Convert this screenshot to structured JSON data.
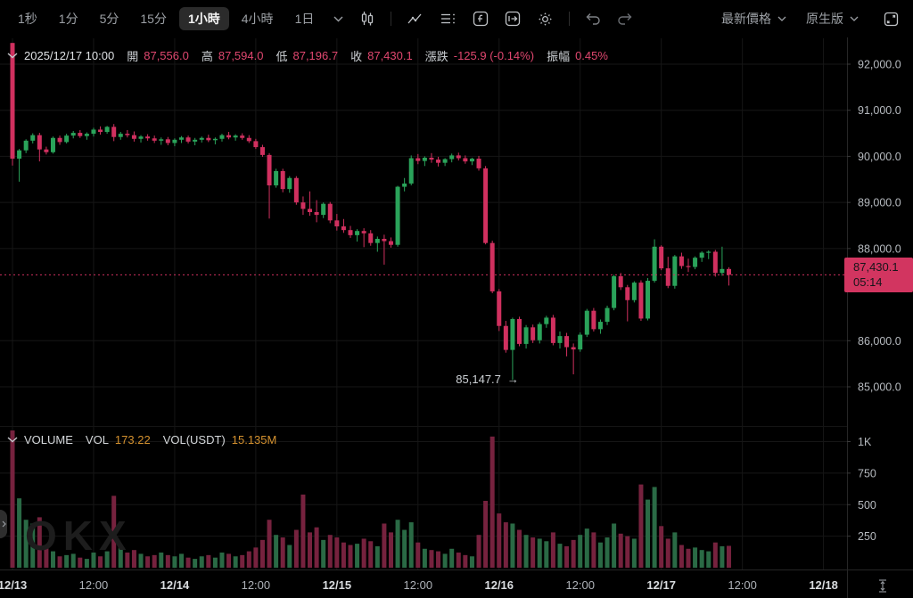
{
  "toolbar": {
    "timeframes": [
      {
        "label": "1秒",
        "active": false
      },
      {
        "label": "1分",
        "active": false
      },
      {
        "label": "5分",
        "active": false
      },
      {
        "label": "15分",
        "active": false
      },
      {
        "label": "1小時",
        "active": true
      },
      {
        "label": "4小時",
        "active": false
      },
      {
        "label": "1日",
        "active": false
      }
    ],
    "price_mode": "最新價格",
    "version": "原生版"
  },
  "ohlc": {
    "date": "2025/12/17 10:00",
    "fields": [
      {
        "label": "開",
        "value": "87,556.0"
      },
      {
        "label": "高",
        "value": "87,594.0"
      },
      {
        "label": "低",
        "value": "87,196.7"
      },
      {
        "label": "收",
        "value": "87,430.1"
      },
      {
        "label": "漲跌",
        "value": "-125.9 (-0.14%)"
      },
      {
        "label": "振幅",
        "value": "0.45%"
      }
    ]
  },
  "volume_header": {
    "title": "VOLUME",
    "vol_label": "VOL",
    "vol_value": "173.22",
    "vol_usdt_label": "VOL(USDT)",
    "vol_usdt_value": "15.135M"
  },
  "annotation": {
    "text": "85,147.7",
    "arrow": "→"
  },
  "price_tag": {
    "price": "87,430.1",
    "countdown": "05:14"
  },
  "watermark_text": "OKX",
  "chart_data": {
    "type": "candlestick",
    "interval": "1小時",
    "start_time": "2025/12/13 00:00",
    "colors": {
      "up": "#2aa35a",
      "down": "#d0305f",
      "vol_up": "#2a6a45",
      "vol_down": "#76223e",
      "grid": "#161616",
      "axis_text": "#b6babf",
      "tag_bg": "#d23560"
    },
    "last_price": 87430.1,
    "low_annotation": {
      "value": 85147.7,
      "hour": 74
    },
    "y_ticks": [
      {
        "label": "92,000.0",
        "value": 92000
      },
      {
        "label": "91,000.0",
        "value": 91000
      },
      {
        "label": "90,000.0",
        "value": 90000
      },
      {
        "label": "89,000.0",
        "value": 89000
      },
      {
        "label": "88,000.0",
        "value": 88000
      },
      {
        "label": "86,000.0",
        "value": 86000
      },
      {
        "label": "85,000.0",
        "value": 85000
      }
    ],
    "volume_ticks": [
      {
        "label": "1K",
        "value": 1000
      },
      {
        "label": "750",
        "value": 750
      },
      {
        "label": "500",
        "value": 500
      },
      {
        "label": "250",
        "value": 250
      }
    ],
    "x_ticks": [
      {
        "label": "12/13",
        "hour": 0,
        "bold": true
      },
      {
        "label": "12:00",
        "hour": 12,
        "bold": false
      },
      {
        "label": "12/14",
        "hour": 24,
        "bold": true
      },
      {
        "label": "12:00",
        "hour": 36,
        "bold": false
      },
      {
        "label": "12/15",
        "hour": 48,
        "bold": true
      },
      {
        "label": "12:00",
        "hour": 60,
        "bold": false
      },
      {
        "label": "12/16",
        "hour": 72,
        "bold": true
      },
      {
        "label": "12:00",
        "hour": 84,
        "bold": false
      },
      {
        "label": "12/17",
        "hour": 96,
        "bold": true
      },
      {
        "label": "12:00",
        "hour": 108,
        "bold": false
      },
      {
        "label": "12/18",
        "hour": 120,
        "bold": true
      }
    ],
    "candles": [
      [
        92460,
        92460,
        89800,
        89950,
        1150
      ],
      [
        89950,
        90160,
        89450,
        90130,
        550
      ],
      [
        90130,
        90370,
        90070,
        90340,
        380
      ],
      [
        90340,
        90500,
        90280,
        90460,
        350
      ],
      [
        90460,
        90510,
        89890,
        90150,
        400
      ],
      [
        90150,
        90210,
        90040,
        90090,
        160
      ],
      [
        90090,
        90430,
        90060,
        90400,
        130
      ],
      [
        90400,
        90450,
        90250,
        90310,
        90
      ],
      [
        90310,
        90490,
        90280,
        90450,
        100
      ],
      [
        90450,
        90550,
        90390,
        90510,
        110
      ],
      [
        90510,
        90570,
        90400,
        90440,
        80
      ],
      [
        90440,
        90520,
        90360,
        90490,
        70
      ],
      [
        90490,
        90620,
        90430,
        90580,
        120
      ],
      [
        90580,
        90650,
        90470,
        90530,
        90
      ],
      [
        90530,
        90660,
        90490,
        90640,
        130
      ],
      [
        90640,
        90700,
        90330,
        90420,
        570
      ],
      [
        90420,
        90530,
        90360,
        90490,
        180
      ],
      [
        90490,
        90570,
        90410,
        90460,
        120
      ],
      [
        90460,
        90540,
        90320,
        90380,
        140
      ],
      [
        90380,
        90460,
        90300,
        90430,
        110
      ],
      [
        90430,
        90480,
        90340,
        90390,
        90
      ],
      [
        90390,
        90450,
        90290,
        90340,
        100
      ],
      [
        90340,
        90410,
        90250,
        90370,
        120
      ],
      [
        90370,
        90420,
        90240,
        90290,
        100
      ],
      [
        90290,
        90390,
        90220,
        90360,
        90
      ],
      [
        90360,
        90440,
        90290,
        90410,
        110
      ],
      [
        90410,
        90450,
        90280,
        90320,
        80
      ],
      [
        90320,
        90400,
        90240,
        90360,
        70
      ],
      [
        90360,
        90430,
        90300,
        90400,
        90
      ],
      [
        90400,
        90470,
        90310,
        90350,
        100
      ],
      [
        90350,
        90410,
        90260,
        90380,
        80
      ],
      [
        90380,
        90490,
        90320,
        90460,
        120
      ],
      [
        90460,
        90530,
        90370,
        90410,
        110
      ],
      [
        90410,
        90480,
        90340,
        90450,
        90
      ],
      [
        90450,
        90500,
        90360,
        90400,
        100
      ],
      [
        90400,
        90460,
        90290,
        90330,
        130
      ],
      [
        90330,
        90380,
        90160,
        90200,
        160
      ],
      [
        90200,
        90250,
        89990,
        90030,
        220
      ],
      [
        90030,
        90070,
        88650,
        89370,
        380
      ],
      [
        89370,
        89730,
        89320,
        89680,
        260
      ],
      [
        89680,
        89730,
        89220,
        89290,
        240
      ],
      [
        89290,
        89570,
        89210,
        89530,
        180
      ],
      [
        89530,
        89570,
        88950,
        89000,
        300
      ],
      [
        89000,
        89130,
        88730,
        88860,
        580
      ],
      [
        88860,
        89240,
        88710,
        88790,
        280
      ],
      [
        88790,
        89050,
        88570,
        88730,
        320
      ],
      [
        88730,
        89000,
        88660,
        88970,
        220
      ],
      [
        88970,
        89010,
        88550,
        88610,
        260
      ],
      [
        88610,
        88750,
        88390,
        88480,
        240
      ],
      [
        88480,
        88640,
        88340,
        88400,
        200
      ],
      [
        88400,
        88490,
        88230,
        88290,
        180
      ],
      [
        88290,
        88420,
        88150,
        88380,
        190
      ],
      [
        88380,
        88440,
        88030,
        88330,
        230
      ],
      [
        88330,
        88400,
        88060,
        88120,
        210
      ],
      [
        88120,
        88260,
        87930,
        88210,
        170
      ],
      [
        88210,
        88300,
        87650,
        88160,
        350
      ],
      [
        88160,
        88240,
        88020,
        88080,
        280
      ],
      [
        88080,
        89360,
        88040,
        89340,
        380
      ],
      [
        89340,
        89530,
        89240,
        89410,
        300
      ],
      [
        89410,
        90020,
        89370,
        89960,
        360
      ],
      [
        89960,
        90050,
        89830,
        89900,
        200
      ],
      [
        89900,
        90000,
        89790,
        89970,
        150
      ],
      [
        89970,
        90070,
        89860,
        89930,
        140
      ],
      [
        89930,
        89990,
        89780,
        89860,
        130
      ],
      [
        89860,
        89960,
        89790,
        89940,
        110
      ],
      [
        89940,
        90060,
        89870,
        90020,
        150
      ],
      [
        90020,
        90080,
        89910,
        89960,
        120
      ],
      [
        89960,
        90020,
        89840,
        89890,
        100
      ],
      [
        89890,
        89970,
        89810,
        89950,
        90
      ],
      [
        89950,
        90010,
        89690,
        89740,
        260
      ],
      [
        89740,
        89790,
        88090,
        88120,
        530
      ],
      [
        88120,
        88170,
        87030,
        87070,
        1040
      ],
      [
        87070,
        87120,
        86210,
        86320,
        430
      ],
      [
        86320,
        86430,
        85740,
        85800,
        360
      ],
      [
        85800,
        86500,
        85147.7,
        86470,
        350
      ],
      [
        86470,
        86520,
        85880,
        85930,
        300
      ],
      [
        85930,
        86340,
        85830,
        86290,
        260
      ],
      [
        86290,
        86350,
        85950,
        86010,
        240
      ],
      [
        86010,
        86400,
        85940,
        86360,
        230
      ],
      [
        86360,
        86540,
        86280,
        86500,
        210
      ],
      [
        86500,
        86560,
        85900,
        85950,
        280
      ],
      [
        85950,
        86200,
        85830,
        86100,
        190
      ],
      [
        86100,
        86170,
        85660,
        85860,
        170
      ],
      [
        85860,
        85940,
        85270,
        85810,
        220
      ],
      [
        85810,
        86180,
        85760,
        86130,
        260
      ],
      [
        86130,
        86690,
        86080,
        86650,
        310
      ],
      [
        86650,
        86710,
        86200,
        86250,
        280
      ],
      [
        86250,
        86460,
        86150,
        86410,
        200
      ],
      [
        86410,
        86760,
        86340,
        86710,
        240
      ],
      [
        86710,
        87430,
        86660,
        87400,
        350
      ],
      [
        87400,
        87470,
        87100,
        87160,
        270
      ],
      [
        87160,
        87210,
        86420,
        86880,
        250
      ],
      [
        86880,
        87290,
        86830,
        87260,
        230
      ],
      [
        87260,
        87310,
        86430,
        86480,
        660
      ],
      [
        86480,
        87360,
        86440,
        87300,
        540
      ],
      [
        87300,
        88200,
        87260,
        88040,
        640
      ],
      [
        88040,
        88070,
        87530,
        87570,
        330
      ],
      [
        87570,
        87820,
        87140,
        87190,
        230
      ],
      [
        87190,
        87860,
        87130,
        87830,
        280
      ],
      [
        87830,
        87910,
        87560,
        87620,
        180
      ],
      [
        87620,
        87780,
        87490,
        87600,
        150
      ],
      [
        87600,
        87830,
        87550,
        87800,
        160
      ],
      [
        87800,
        87940,
        87710,
        87910,
        140
      ],
      [
        87910,
        87960,
        87770,
        87930,
        130
      ],
      [
        87930,
        87970,
        87390,
        87470,
        200
      ],
      [
        87470,
        88040,
        87410,
        87556,
        170
      ],
      [
        87556,
        87594,
        87196.7,
        87430.1,
        173.22
      ]
    ]
  }
}
